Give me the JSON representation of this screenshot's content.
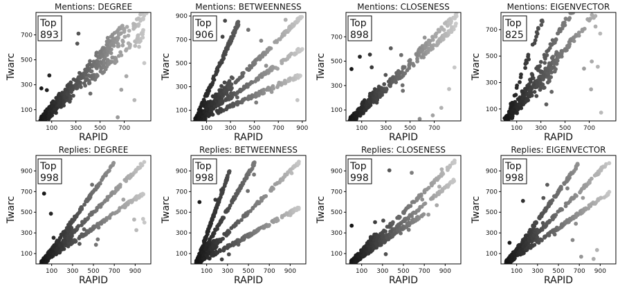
{
  "figure": {
    "xlabel": "RAPID",
    "ylabel": "Twarc",
    "box_prefix": "Top"
  },
  "chart_data": [
    {
      "type": "scatter",
      "title": "Mentions: DEGREE",
      "top": "893",
      "xlim": [
        -30,
        920
      ],
      "ylim": [
        10,
        880
      ],
      "xticks": [
        100,
        300,
        500,
        700
      ],
      "yticks": [
        100,
        300,
        500,
        700
      ],
      "rays": [
        {
          "slope": 1.0,
          "xmax": 900,
          "spread": 45
        },
        {
          "slope": 0.82,
          "xmax": 880,
          "spread": 40
        },
        {
          "slope": 1.1,
          "xmax": 700,
          "spread": 40
        }
      ],
      "cloud": {
        "x": [
          0,
          250
        ],
        "y": [
          0,
          300
        ]
      }
    },
    {
      "type": "scatter",
      "title": "Mentions: BETWEENNESS",
      "top": "906",
      "xlim": [
        -30,
        930
      ],
      "ylim": [
        10,
        930
      ],
      "xticks": [
        100,
        300,
        500,
        700,
        900
      ],
      "yticks": [
        100,
        300,
        500,
        700,
        900
      ],
      "rays": [
        {
          "slope": 2.3,
          "xmax": 370,
          "spread": 20
        },
        {
          "slope": 1.0,
          "xmax": 900,
          "spread": 15
        },
        {
          "slope": 0.7,
          "xmax": 900,
          "spread": 15
        },
        {
          "slope": 0.45,
          "xmax": 900,
          "spread": 15
        }
      ],
      "cloud": {
        "x": [
          0,
          320
        ],
        "y": [
          0,
          330
        ]
      }
    },
    {
      "type": "scatter",
      "title": "Mentions: CLOSENESS",
      "top": "898",
      "xlim": [
        -30,
        920
      ],
      "ylim": [
        10,
        900
      ],
      "xticks": [
        100,
        300,
        500,
        700
      ],
      "yticks": [
        100,
        300,
        500,
        700
      ],
      "rays": [
        {
          "slope": 1.0,
          "xmax": 890,
          "spread": 25
        },
        {
          "slope": 0.9,
          "xmax": 880,
          "spread": 20
        }
      ],
      "cloud": {
        "x": [
          0,
          250
        ],
        "y": [
          0,
          250
        ]
      }
    },
    {
      "type": "scatter",
      "title": "Mentions: EIGENVECTOR",
      "top": "825",
      "xlim": [
        -30,
        920
      ],
      "ylim": [
        10,
        830
      ],
      "xticks": [
        100,
        300,
        500,
        700
      ],
      "yticks": [
        100,
        300,
        500,
        700
      ],
      "rays": [
        {
          "slope": 1.5,
          "xmax": 870,
          "spread": 25
        },
        {
          "slope": 2.5,
          "xmax": 820,
          "spread": 25
        },
        {
          "slope": 1.1,
          "xmax": 880,
          "spread": 25
        }
      ],
      "cloud": {
        "x": [
          0,
          450
        ],
        "y": [
          30,
          800
        ]
      }
    },
    {
      "type": "scatter",
      "title": "Replies: DEGREE",
      "top": "998",
      "xlim": [
        -50,
        1050
      ],
      "ylim": [
        0,
        1050
      ],
      "xticks": [
        100,
        300,
        500,
        700,
        900
      ],
      "yticks": [
        100,
        300,
        500,
        700,
        900
      ],
      "rays": [
        {
          "slope": 1.4,
          "xmax": 700,
          "spread": 15
        },
        {
          "slope": 1.0,
          "xmax": 990,
          "spread": 15
        },
        {
          "slope": 0.7,
          "xmax": 990,
          "spread": 15
        }
      ],
      "cloud": {
        "x": [
          0,
          300
        ],
        "y": [
          0,
          300
        ]
      }
    },
    {
      "type": "scatter",
      "title": "Replies: BETWEENNESS",
      "top": "998",
      "xlim": [
        -50,
        1050
      ],
      "ylim": [
        0,
        1050
      ],
      "xticks": [
        100,
        300,
        500,
        700,
        900
      ],
      "yticks": [
        100,
        300,
        500,
        700,
        900
      ],
      "rays": [
        {
          "slope": 2.8,
          "xmax": 320,
          "spread": 15
        },
        {
          "slope": 1.75,
          "xmax": 560,
          "spread": 15
        },
        {
          "slope": 1.0,
          "xmax": 990,
          "spread": 15
        },
        {
          "slope": 0.55,
          "xmax": 990,
          "spread": 15
        }
      ],
      "cloud": {
        "x": [
          0,
          200
        ],
        "y": [
          0,
          200
        ]
      }
    },
    {
      "type": "scatter",
      "title": "Replies: CLOSENESS",
      "top": "998",
      "xlim": [
        -50,
        1050
      ],
      "ylim": [
        0,
        1050
      ],
      "xticks": [
        100,
        300,
        500,
        700,
        900
      ],
      "yticks": [
        100,
        300,
        500,
        700,
        900
      ],
      "rays": [
        {
          "slope": 1.0,
          "xmax": 990,
          "spread": 15
        },
        {
          "slope": 0.82,
          "xmax": 990,
          "spread": 15
        },
        {
          "slope": 0.7,
          "xmax": 700,
          "spread": 15
        }
      ],
      "cloud": {
        "x": [
          0,
          250
        ],
        "y": [
          0,
          250
        ]
      }
    },
    {
      "type": "scatter",
      "title": "Replies: EIGENVECTOR",
      "top": "998",
      "xlim": [
        -50,
        1050
      ],
      "ylim": [
        0,
        1050
      ],
      "xticks": [
        100,
        300,
        500,
        700,
        900
      ],
      "yticks": [
        100,
        300,
        500,
        700,
        900
      ],
      "rays": [
        {
          "slope": 1.4,
          "xmax": 700,
          "spread": 15
        },
        {
          "slope": 1.0,
          "xmax": 990,
          "spread": 15
        },
        {
          "slope": 0.7,
          "xmax": 990,
          "spread": 15
        }
      ],
      "cloud": {
        "x": [
          0,
          300
        ],
        "y": [
          0,
          300
        ]
      }
    }
  ]
}
